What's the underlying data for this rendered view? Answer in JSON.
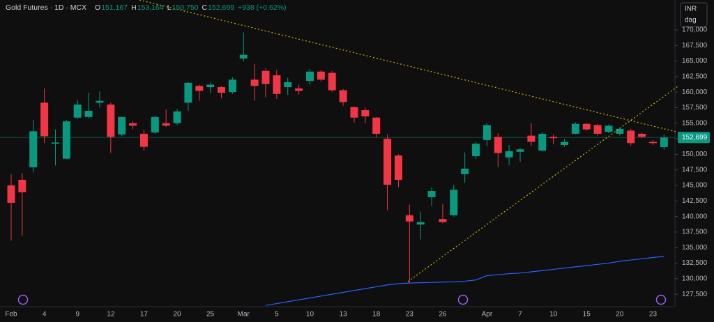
{
  "chart_data": {
    "type": "candlestick",
    "title": "Gold Futures · 1D · MCX",
    "ohlc_header": [
      {
        "key": "O",
        "text": "151,167"
      },
      {
        "key": "H",
        "text": "153,164"
      },
      {
        "key": "L",
        "text": "150,750"
      },
      {
        "key": "C",
        "text": "152,699"
      }
    ],
    "change": "+938 (+0.62%)",
    "currency": "INR",
    "unit": "dag",
    "up_color": "#089981",
    "down_color": "#f23645",
    "categories": [
      "Feb",
      null,
      null,
      "4",
      null,
      null,
      "9",
      null,
      null,
      "12",
      null,
      null,
      "17",
      null,
      null,
      "20",
      null,
      null,
      "25",
      null,
      null,
      "Mar",
      null,
      null,
      "5",
      null,
      null,
      "10",
      null,
      null,
      "13",
      null,
      null,
      "18",
      null,
      null,
      "23",
      null,
      null,
      "26",
      null,
      null,
      null,
      "Apr",
      null,
      null,
      "7",
      null,
      null,
      "10",
      null,
      null,
      "15",
      null,
      null,
      "20",
      null,
      null,
      "23",
      null
    ],
    "open": [
      145000,
      145900,
      147900,
      158300,
      151700,
      149300,
      155900,
      156000,
      158300,
      158000,
      153200,
      155000,
      153300,
      153500,
      155000,
      155000,
      158300,
      161000,
      160800,
      160800,
      160000,
      165400,
      162000,
      163400,
      162700,
      160800,
      160600,
      161800,
      163300,
      163100,
      160300,
      157600,
      157100,
      155900,
      152500,
      149800,
      140200,
      138700,
      143100,
      139600,
      140200,
      146800,
      149700,
      152300,
      152800,
      149500,
      150400,
      153000,
      150600,
      152800,
      151500,
      153300,
      154900,
      154700,
      153600,
      153300,
      153800,
      153300,
      152000,
      151167
    ],
    "high": [
      146800,
      147000,
      155500,
      160600,
      154000,
      155500,
      158800,
      159900,
      160100,
      158300,
      156000,
      155300,
      154000,
      156200,
      157200,
      157300,
      161600,
      161200,
      161500,
      161000,
      162400,
      169600,
      164500,
      163800,
      163600,
      162300,
      161200,
      163700,
      163500,
      163400,
      160500,
      157700,
      157500,
      156000,
      153200,
      150000,
      141900,
      140800,
      144700,
      142000,
      145100,
      150300,
      152000,
      155000,
      153400,
      151500,
      151000,
      155000,
      153600,
      153200,
      152500,
      155100,
      155000,
      154900,
      154800,
      154300,
      154100,
      153500,
      152300,
      153164
    ],
    "low": [
      136100,
      136900,
      147100,
      151800,
      148200,
      149200,
      155700,
      155800,
      157500,
      150200,
      152900,
      154000,
      150600,
      153300,
      154400,
      154700,
      157000,
      158600,
      159800,
      159000,
      159700,
      164900,
      158600,
      159200,
      158900,
      159500,
      159600,
      161200,
      161700,
      160000,
      157800,
      155100,
      155000,
      152700,
      141000,
      144700,
      129400,
      136300,
      141700,
      138900,
      140000,
      145400,
      149300,
      151300,
      148000,
      148200,
      148800,
      151400,
      150500,
      151600,
      151200,
      153200,
      153800,
      153000,
      153400,
      153000,
      151400,
      152600,
      151500,
      150750
    ],
    "close": [
      142200,
      143900,
      153700,
      152900,
      151900,
      155300,
      158000,
      157000,
      158600,
      152800,
      156000,
      154600,
      151200,
      156000,
      154600,
      156900,
      161500,
      160200,
      161200,
      159900,
      162000,
      166000,
      161000,
      161300,
      159700,
      161600,
      160200,
      163300,
      162000,
      160300,
      158400,
      155900,
      156100,
      153300,
      145100,
      145900,
      139200,
      139100,
      144100,
      139100,
      144300,
      147700,
      151700,
      154700,
      150200,
      150500,
      150800,
      152000,
      153300,
      152600,
      152000,
      154900,
      154000,
      153300,
      154600,
      154100,
      151800,
      152800,
      151800,
      152699
    ],
    "overlay": {
      "color": "#2962ff",
      "values": [
        null,
        null,
        null,
        null,
        null,
        null,
        null,
        null,
        null,
        null,
        null,
        null,
        null,
        null,
        null,
        null,
        null,
        null,
        null,
        null,
        null,
        null,
        null,
        125700,
        126000,
        126300,
        126600,
        126900,
        127200,
        127500,
        127800,
        128100,
        128400,
        128700,
        129000,
        129200,
        129300,
        129350,
        129400,
        129450,
        129500,
        129600,
        129800,
        130500,
        130650,
        130800,
        130900,
        131100,
        131300,
        131500,
        131700,
        131900,
        132100,
        132300,
        132500,
        132800,
        133000,
        133200,
        133400,
        133600
      ]
    },
    "last_price": {
      "value": 152699,
      "label": "152,699"
    },
    "ylim": [
      125500,
      171000
    ],
    "yticks": [
      {
        "value": 127500,
        "label": "127,500"
      },
      {
        "value": 130000,
        "label": "130,000"
      },
      {
        "value": 132500,
        "label": "132,500"
      },
      {
        "value": 135000,
        "label": "135,000"
      },
      {
        "value": 137500,
        "label": "137,500"
      },
      {
        "value": 140000,
        "label": "140,000"
      },
      {
        "value": 142500,
        "label": "142,500"
      },
      {
        "value": 145000,
        "label": "145,000"
      },
      {
        "value": 147500,
        "label": "147,500"
      },
      {
        "value": 150000,
        "label": "150,000"
      },
      {
        "value": 152500,
        "label": "152,500"
      },
      {
        "value": 155000,
        "label": "155,000"
      },
      {
        "value": 157500,
        "label": "157,500"
      },
      {
        "value": 160000,
        "label": "160,000"
      },
      {
        "value": 162500,
        "label": "162,500"
      },
      {
        "value": 165000,
        "label": "165,000"
      },
      {
        "value": 167500,
        "label": "167,500"
      },
      {
        "value": 170000,
        "label": "170,000"
      }
    ]
  }
}
